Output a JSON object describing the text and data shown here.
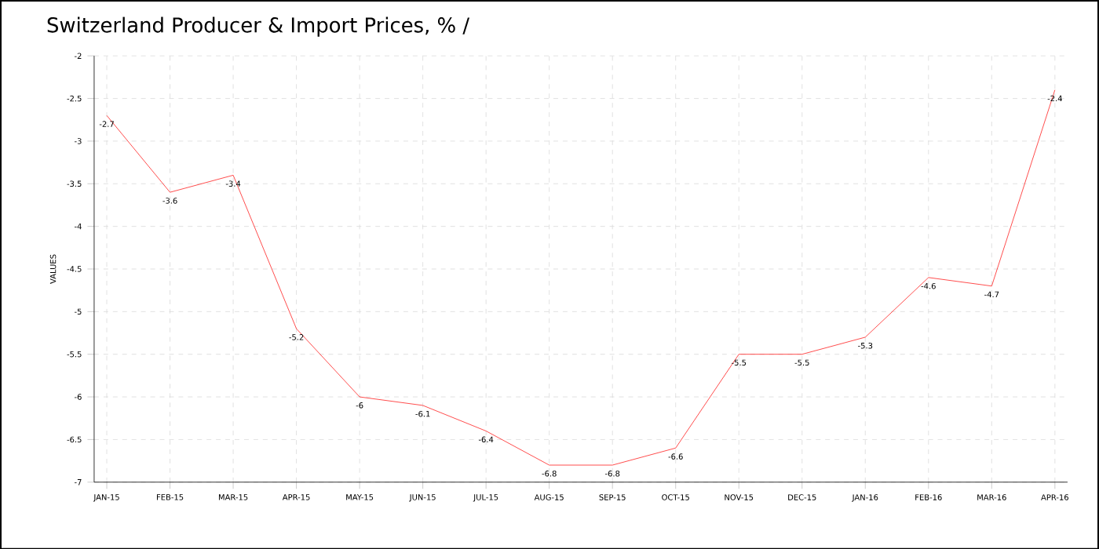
{
  "chart_data": {
    "type": "line",
    "title": "Switzerland Producer & Import Prices, % /",
    "ylabel": "VALUES",
    "categories": [
      "JAN-15",
      "FEB-15",
      "MAR-15",
      "APR-15",
      "MAY-15",
      "JUN-15",
      "JUL-15",
      "AUG-15",
      "SEP-15",
      "OCT-15",
      "NOV-15",
      "DEC-15",
      "JAN-16",
      "FEB-16",
      "MAR-16",
      "APR-16"
    ],
    "values": [
      -2.7,
      -3.6,
      -3.4,
      -5.2,
      -6,
      -6.1,
      -6.4,
      -6.8,
      -6.8,
      -6.6,
      -5.5,
      -5.5,
      -5.3,
      -4.6,
      -4.7,
      -2.4
    ],
    "color": "#ff2020",
    "ylim": [
      -7,
      -2
    ],
    "yticks": [
      -7,
      -6.5,
      -6,
      -5.5,
      -5,
      -4.5,
      -4,
      -3.5,
      -3,
      -2.5,
      -2
    ],
    "grid": true,
    "data_labels": true,
    "marker": "none"
  }
}
